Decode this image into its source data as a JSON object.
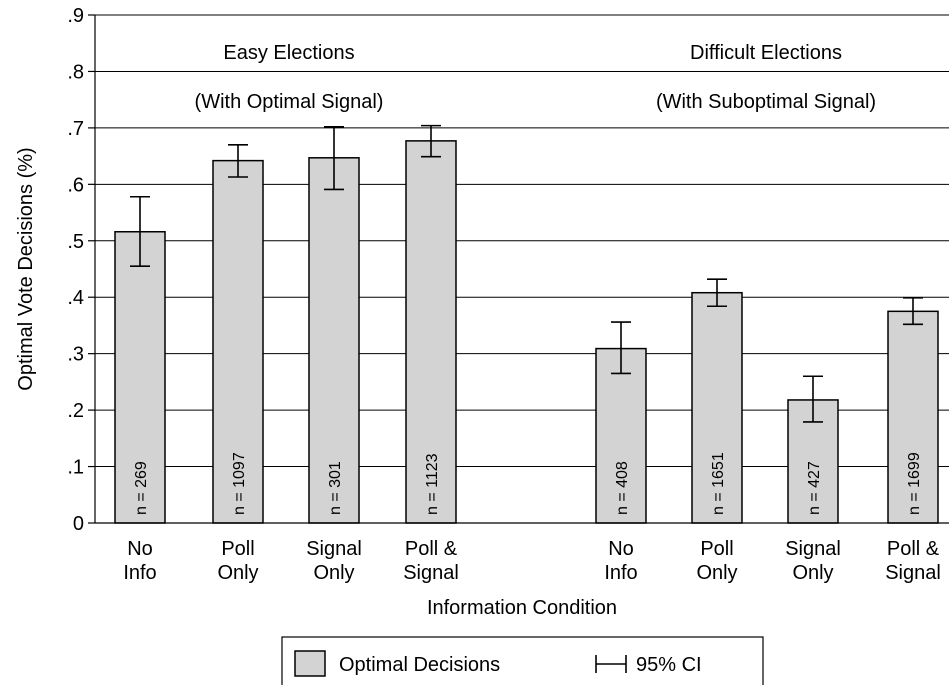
{
  "chart_data": {
    "type": "bar",
    "ylabel": "Optimal Vote Decisions (%)",
    "xlabel": "Information Condition",
    "ylim": [
      0,
      0.9
    ],
    "yticks": [
      {
        "value": 0,
        "label": "0"
      },
      {
        "value": 0.1,
        "label": ".1"
      },
      {
        "value": 0.2,
        "label": ".2"
      },
      {
        "value": 0.3,
        "label": ".3"
      },
      {
        "value": 0.4,
        "label": ".4"
      },
      {
        "value": 0.5,
        "label": ".5"
      },
      {
        "value": 0.6,
        "label": ".6"
      },
      {
        "value": 0.7,
        "label": ".7"
      },
      {
        "value": 0.8,
        "label": ".8"
      },
      {
        "value": 0.9,
        "label": ".9"
      }
    ],
    "grid": true,
    "legend_position": "bottom",
    "colors": {
      "bar_fill": "#d3d3d3",
      "bar_stroke": "#000000",
      "grid": "#000000"
    },
    "groups": [
      {
        "title": "Easy Elections",
        "subtitle": "(With Optimal Signal)",
        "bars": [
          {
            "category": [
              "No",
              "Info"
            ],
            "value": 0.516,
            "ci_low": 0.455,
            "ci_high": 0.578,
            "n_label": "n = 269"
          },
          {
            "category": [
              "Poll",
              "Only"
            ],
            "value": 0.642,
            "ci_low": 0.613,
            "ci_high": 0.67,
            "n_label": "n = 1097"
          },
          {
            "category": [
              "Signal",
              "Only"
            ],
            "value": 0.647,
            "ci_low": 0.591,
            "ci_high": 0.702,
            "n_label": "n = 301"
          },
          {
            "category": [
              "Poll &",
              "Signal"
            ],
            "value": 0.677,
            "ci_low": 0.649,
            "ci_high": 0.704,
            "n_label": "n = 1123"
          }
        ]
      },
      {
        "title": "Difficult Elections",
        "subtitle": "(With Suboptimal Signal)",
        "bars": [
          {
            "category": [
              "No",
              "Info"
            ],
            "value": 0.309,
            "ci_low": 0.265,
            "ci_high": 0.356,
            "n_label": "n = 408"
          },
          {
            "category": [
              "Poll",
              "Only"
            ],
            "value": 0.408,
            "ci_low": 0.384,
            "ci_high": 0.432,
            "n_label": "n = 1651"
          },
          {
            "category": [
              "Signal",
              "Only"
            ],
            "value": 0.218,
            "ci_low": 0.179,
            "ci_high": 0.26,
            "n_label": "n = 427"
          },
          {
            "category": [
              "Poll &",
              "Signal"
            ],
            "value": 0.375,
            "ci_low": 0.352,
            "ci_high": 0.399,
            "n_label": "n = 1699"
          }
        ]
      }
    ],
    "legend": {
      "bar_label": "Optimal Decisions",
      "ci_label": "95% CI"
    }
  }
}
